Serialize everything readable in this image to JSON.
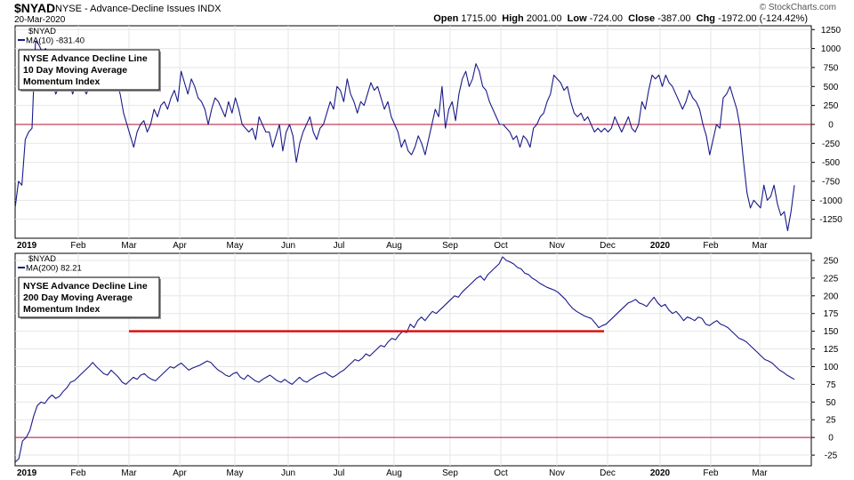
{
  "header": {
    "symbol": "$NYAD",
    "name": "NYSE - Advance-Decline Issues",
    "exchange": "INDX",
    "date": "20-Mar-2020",
    "open_label": "Open",
    "open": "1715.00",
    "high_label": "High",
    "high": "2001.00",
    "low_label": "Low",
    "low": "-724.00",
    "close_label": "Close",
    "close": "-387.00",
    "chg_label": "Chg",
    "chg": "-1972.00 (-124.42%)",
    "watermark": "© StockCharts.com"
  },
  "colors": {
    "line": "#1a1a8a",
    "zero": "#b01030",
    "support": "#dd1010",
    "grid": "#e6e6e6"
  },
  "chart_data": [
    {
      "type": "line",
      "legend_symbol": "$NYAD",
      "legend_series": "MA(10) -831.40",
      "annotation": [
        "NYSE Advance Decline Line",
        "10 Day Moving Average",
        "Momentum Index"
      ],
      "ylim": [
        -1500,
        1300
      ],
      "yticks": [
        1250,
        1000,
        750,
        500,
        250,
        0,
        -250,
        -500,
        -750,
        -1000,
        -1250
      ],
      "reference_lines": [
        0
      ],
      "x_tick_labels": [
        "2019",
        "Feb",
        "Mar",
        "Apr",
        "May",
        "Jun",
        "Jul",
        "Aug",
        "Sep",
        "Oct",
        "Nov",
        "Dec",
        "2020",
        "Feb",
        "Mar"
      ],
      "series": [
        {
          "values": [
            -1100,
            -750,
            -800,
            -200,
            -100,
            -50,
            1100,
            1050,
            950,
            1000,
            700,
            550,
            400,
            500,
            500,
            700,
            550,
            400,
            550,
            700,
            500,
            400,
            500,
            550,
            450,
            600,
            500,
            550,
            450,
            500,
            550,
            400,
            150,
            0,
            -150,
            -300,
            -100,
            0,
            50,
            -100,
            0,
            200,
            100,
            250,
            300,
            200,
            350,
            450,
            300,
            700,
            550,
            400,
            600,
            500,
            350,
            300,
            200,
            0,
            200,
            350,
            300,
            200,
            100,
            300,
            150,
            350,
            200,
            0,
            -50,
            -100,
            -50,
            -200,
            100,
            0,
            -100,
            -100,
            -300,
            -150,
            0,
            -350,
            -100,
            0,
            -150,
            -500,
            -250,
            -100,
            0,
            100,
            -100,
            -200,
            -50,
            0,
            150,
            300,
            200,
            500,
            450,
            300,
            600,
            400,
            300,
            150,
            300,
            250,
            400,
            550,
            450,
            500,
            350,
            200,
            300,
            100,
            0,
            -100,
            -300,
            -200,
            -350,
            -400,
            -300,
            -150,
            -250,
            -400,
            -200,
            0,
            200,
            100,
            500,
            -50,
            200,
            300,
            50,
            400,
            600,
            700,
            500,
            600,
            800,
            700,
            500,
            450,
            300,
            200,
            100,
            0,
            0,
            -50,
            -100,
            -200,
            -150,
            -300,
            -150,
            -200,
            -300,
            -50,
            0,
            100,
            150,
            300,
            400,
            650,
            600,
            550,
            450,
            500,
            300,
            150,
            100,
            150,
            50,
            100,
            0,
            -100,
            -50,
            -100,
            -50,
            -100,
            -50,
            100,
            0,
            -100,
            0,
            100,
            -50,
            -100,
            0,
            300,
            200,
            450,
            650,
            600,
            650,
            500,
            650,
            550,
            500,
            400,
            300,
            200,
            300,
            450,
            350,
            300,
            200,
            0,
            -150,
            -400,
            -200,
            0,
            -50,
            350,
            400,
            500,
            350,
            200,
            -50,
            -500,
            -900,
            -1100,
            -1000,
            -1050,
            -1100,
            -800,
            -1000,
            -950,
            -800,
            -1050,
            -1200,
            -1150,
            -1400,
            -1150,
            -800
          ]
        }
      ]
    },
    {
      "type": "line",
      "legend_symbol": "$NYAD",
      "legend_series": "MA(200) 82.21",
      "annotation": [
        "NYSE Advance Decline Line",
        "200 Day Moving Average",
        "Momentum Index"
      ],
      "ylim": [
        -40,
        260
      ],
      "yticks": [
        250,
        225,
        200,
        175,
        150,
        125,
        100,
        75,
        50,
        25,
        0,
        -25
      ],
      "reference_lines": [
        0
      ],
      "support_line": {
        "value": 150,
        "from": "Dec",
        "to": "Mar"
      },
      "x_tick_labels": [
        "2019",
        "Feb",
        "Mar",
        "Apr",
        "May",
        "Jun",
        "Jul",
        "Aug",
        "Sep",
        "Oct",
        "Nov",
        "Dec",
        "2020",
        "Feb",
        "Mar"
      ],
      "series": [
        {
          "values": [
            -35,
            -30,
            -5,
            0,
            10,
            30,
            45,
            50,
            48,
            55,
            60,
            55,
            58,
            65,
            70,
            78,
            80,
            85,
            90,
            95,
            100,
            106,
            100,
            95,
            90,
            88,
            95,
            90,
            85,
            78,
            75,
            80,
            85,
            82,
            88,
            90,
            85,
            82,
            80,
            85,
            90,
            95,
            100,
            98,
            102,
            105,
            100,
            95,
            98,
            100,
            102,
            105,
            108,
            106,
            100,
            95,
            92,
            88,
            86,
            90,
            92,
            85,
            82,
            88,
            84,
            80,
            78,
            82,
            85,
            88,
            84,
            80,
            78,
            82,
            78,
            75,
            80,
            85,
            80,
            78,
            82,
            85,
            88,
            90,
            92,
            88,
            85,
            88,
            92,
            95,
            100,
            105,
            110,
            108,
            112,
            118,
            115,
            120,
            125,
            130,
            128,
            135,
            140,
            138,
            145,
            150,
            148,
            160,
            155,
            165,
            170,
            165,
            172,
            178,
            175,
            180,
            185,
            190,
            195,
            200,
            198,
            205,
            210,
            215,
            220,
            225,
            228,
            222,
            230,
            235,
            240,
            245,
            255,
            250,
            248,
            245,
            240,
            238,
            232,
            230,
            225,
            222,
            218,
            215,
            212,
            210,
            208,
            205,
            200,
            195,
            188,
            182,
            178,
            175,
            172,
            170,
            168,
            162,
            155,
            158,
            160,
            165,
            170,
            175,
            180,
            185,
            190,
            192,
            195,
            190,
            188,
            185,
            192,
            198,
            190,
            185,
            188,
            180,
            175,
            178,
            172,
            165,
            170,
            168,
            165,
            170,
            168,
            160,
            158,
            162,
            165,
            160,
            158,
            155,
            150,
            145,
            140,
            138,
            135,
            130,
            125,
            120,
            115,
            110,
            108,
            105,
            100,
            95,
            92,
            88,
            85,
            82
          ]
        }
      ]
    }
  ]
}
